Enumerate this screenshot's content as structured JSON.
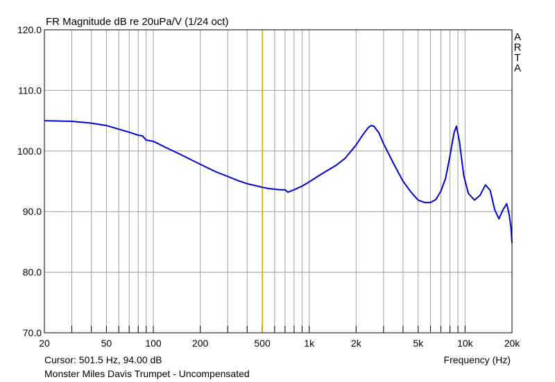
{
  "chart_data": {
    "type": "line",
    "title": "FR Magnitude dB re 20uPa/V (1/24 oct)",
    "brand": "ARTA",
    "xlabel": "Frequency (Hz)",
    "ylabel": "",
    "x_scale": "log",
    "xlim": [
      20,
      20000
    ],
    "ylim": [
      70,
      120
    ],
    "yticks": [
      70,
      80,
      90,
      100,
      110,
      120
    ],
    "ytick_labels": [
      "70.0",
      "80.0",
      "90.0",
      "100.0",
      "110.0",
      "120.0"
    ],
    "xticks": [
      20,
      50,
      100,
      200,
      500,
      1000,
      2000,
      5000,
      10000,
      20000
    ],
    "xtick_labels": [
      "20",
      "50",
      "100",
      "200",
      "500",
      "1k",
      "2k",
      "5k",
      "10k",
      "20k"
    ],
    "grid": true,
    "cursor": {
      "x": 501.5,
      "y": 94.0,
      "label": "Cursor: 501.5 Hz, 94.00 dB"
    },
    "footer": "Monster Miles Davis Trumpet - Uncompensated",
    "colors": {
      "line": "#0000cc",
      "cursor": "#c8a000",
      "grid": "#a0a0a0",
      "frame": "#000000"
    },
    "series": [
      {
        "x": [
          20,
          30,
          40,
          50,
          60,
          70,
          80,
          85,
          90,
          100,
          120,
          150,
          200,
          250,
          300,
          350,
          400,
          450,
          500,
          550,
          600,
          650,
          700,
          730,
          800,
          900,
          1000,
          1200,
          1500,
          1700,
          2000,
          2200,
          2400,
          2500,
          2600,
          2800,
          3000,
          3500,
          4000,
          4500,
          5000,
          5500,
          6000,
          6500,
          7000,
          7500,
          8000,
          8500,
          8800,
          9200,
          9800,
          10500,
          11500,
          12500,
          13500,
          14500,
          15500,
          16500,
          17500,
          18500,
          19200,
          19700,
          20000
        ],
        "y": [
          105,
          104.9,
          104.6,
          104.2,
          103.6,
          103.1,
          102.6,
          102.5,
          101.8,
          101.6,
          100.6,
          99.4,
          97.8,
          96.6,
          95.8,
          95.1,
          94.6,
          94.3,
          94.0,
          93.8,
          93.7,
          93.6,
          93.6,
          93.2,
          93.6,
          94.2,
          94.9,
          96.2,
          97.7,
          98.8,
          101.0,
          102.6,
          103.9,
          104.2,
          104.1,
          103.0,
          101.2,
          97.8,
          95.0,
          93.2,
          91.9,
          91.5,
          91.5,
          92.0,
          93.4,
          95.5,
          99.2,
          103.0,
          104.1,
          101.6,
          96.0,
          93.0,
          91.9,
          92.7,
          94.4,
          93.5,
          90.3,
          88.8,
          90.3,
          91.3,
          89.5,
          87.4,
          84.8
        ]
      }
    ]
  }
}
